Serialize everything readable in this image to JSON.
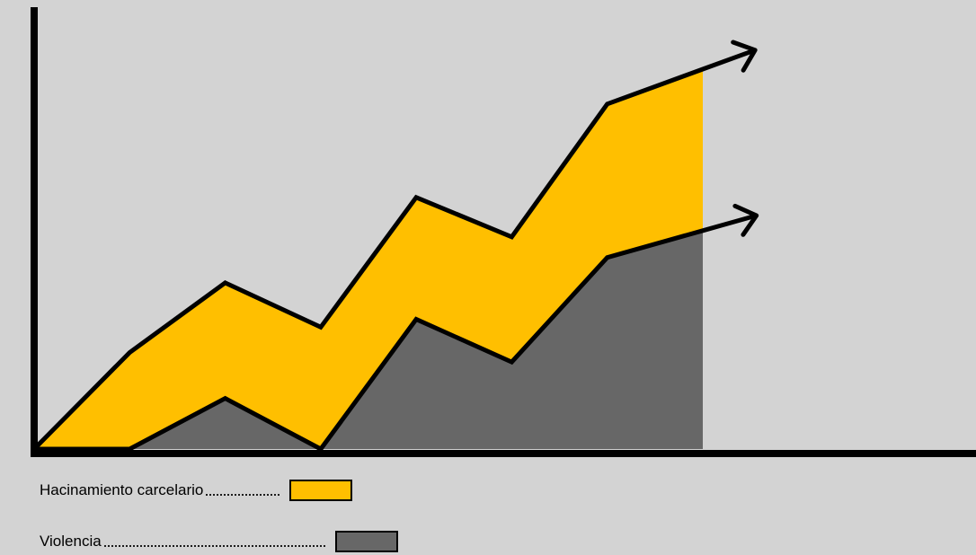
{
  "chart_data": {
    "type": "area",
    "x": [
      0,
      1,
      2,
      3,
      4,
      5,
      6,
      7
    ],
    "series": [
      {
        "name": "Violencia",
        "values": [
          0,
          0,
          3.2,
          0,
          8.2,
          5.5,
          12.1,
          13.8
        ],
        "color": "#676767"
      },
      {
        "name": "Hacinamiento carcelario",
        "values": [
          0,
          6.1,
          10.5,
          7.7,
          15.9,
          13.4,
          21.8,
          24.0
        ],
        "color": "#ffbf00"
      }
    ],
    "ylim": [
      0,
      25
    ],
    "grid": false,
    "trend_arrows": true,
    "legend_position": "bottom-left",
    "xlabel": "",
    "ylabel": ""
  },
  "legend": {
    "items": [
      {
        "label": "Hacinamiento carcelario",
        "color": "#ffbf00"
      },
      {
        "label": "Violencia",
        "color": "#676767"
      }
    ]
  }
}
